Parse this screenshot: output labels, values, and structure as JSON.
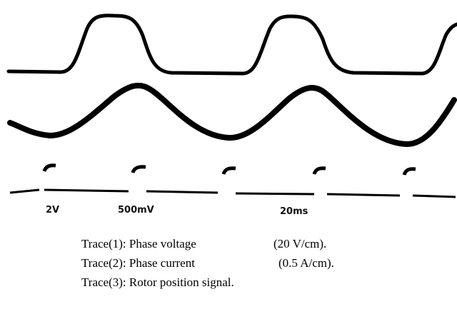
{
  "scope_labels": [
    "2V",
    "500mV",
    "20ms"
  ],
  "caption": [
    {
      "label": "Trace(1): Phase voltage",
      "scale": "(20 V/cm)."
    },
    {
      "label": "Trace(2):  Phase current",
      "scale": "(0.5 A/cm)."
    },
    {
      "label": "Trace(3):  Rotor position signal."
    }
  ]
}
